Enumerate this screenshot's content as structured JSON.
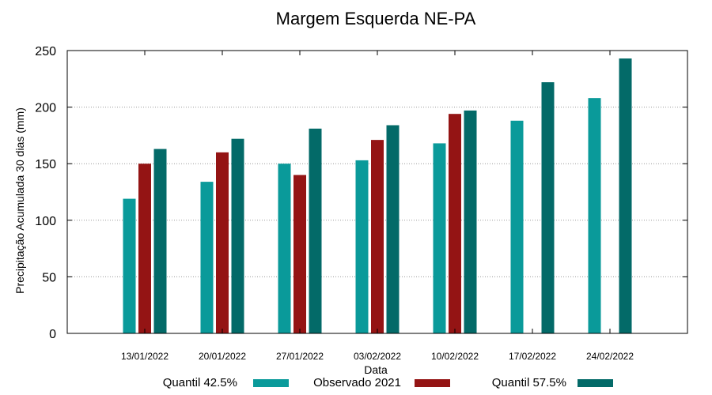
{
  "chart_data": {
    "type": "bar",
    "title": "Margem Esquerda NE-PA",
    "xlabel": "Data",
    "ylabel": "Precipitação Acumulada 30 dias (mm)",
    "ylim": [
      0,
      250
    ],
    "yticks": [
      0,
      50,
      100,
      150,
      200,
      250
    ],
    "grid": "horizontal dotted",
    "legend_position": "bottom",
    "categories": [
      "13/01/2022",
      "20/01/2022",
      "27/01/2022",
      "03/02/2022",
      "10/02/2022",
      "17/02/2022",
      "24/02/2022"
    ],
    "series": [
      {
        "name": "Quantil 42.5%",
        "color": "#0a9a9a",
        "values": [
          119,
          134,
          150,
          153,
          168,
          188,
          208
        ]
      },
      {
        "name": "Observado 2021",
        "color": "#941414",
        "values": [
          150,
          160,
          140,
          171,
          194,
          null,
          null
        ]
      },
      {
        "name": "Quantil 57.5%",
        "color": "#036a68",
        "values": [
          163,
          172,
          181,
          184,
          197,
          222,
          243
        ]
      }
    ]
  }
}
